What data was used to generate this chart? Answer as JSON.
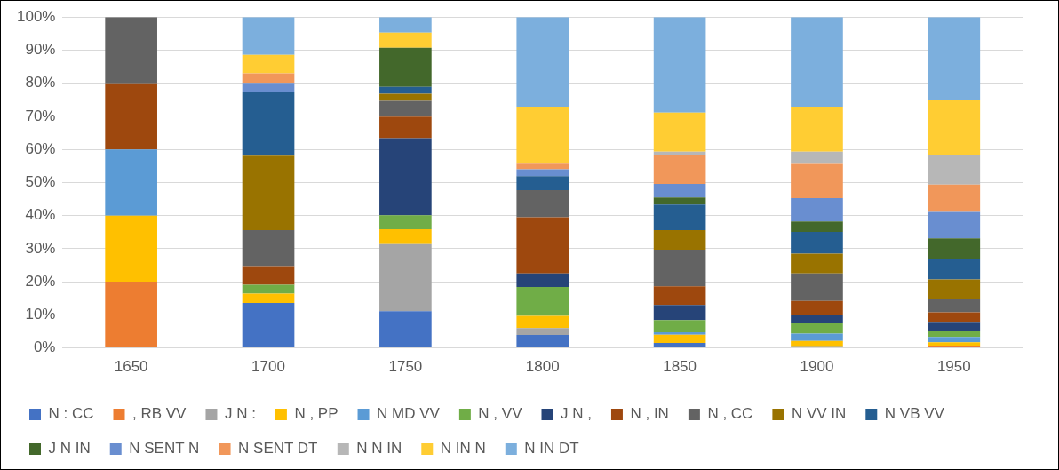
{
  "chart_data": {
    "type": "bar",
    "stacked": true,
    "grid": "y",
    "legend": "bottom",
    "categories": [
      "1650",
      "1700",
      "1750",
      "1800",
      "1850",
      "1900",
      "1950"
    ],
    "ylim": [
      0,
      100
    ],
    "yticks": [
      {
        "value": 0,
        "label": "0%"
      },
      {
        "value": 10,
        "label": "10%"
      },
      {
        "value": 20,
        "label": "20%"
      },
      {
        "value": 30,
        "label": "30%"
      },
      {
        "value": 40,
        "label": "40%"
      },
      {
        "value": 50,
        "label": "50%"
      },
      {
        "value": 60,
        "label": "60%"
      },
      {
        "value": 70,
        "label": "70%"
      },
      {
        "value": 80,
        "label": "80%"
      },
      {
        "value": 90,
        "label": "90%"
      },
      {
        "value": 100,
        "label": "100%"
      }
    ],
    "series": [
      {
        "name": "N : CC",
        "color": "#4472c4",
        "values": [
          0,
          13.6,
          11.1,
          3.9,
          1.5,
          0.5,
          0
        ]
      },
      {
        "name": ", RB VV",
        "color": "#ed7d31",
        "values": [
          20,
          0,
          0,
          0,
          0,
          0,
          0.7
        ]
      },
      {
        "name": "J N :",
        "color": "#a5a5a5",
        "values": [
          0,
          0,
          20.3,
          2.1,
          0,
          0,
          0
        ]
      },
      {
        "name": "N , PP",
        "color": "#ffc000",
        "values": [
          20,
          2.8,
          4.5,
          3.7,
          2.5,
          1.6,
          1.0
        ]
      },
      {
        "name": "N MD VV",
        "color": "#5b9bd5",
        "values": [
          20,
          0,
          0,
          0,
          0.7,
          2.2,
          1.6
        ]
      },
      {
        "name": "N , VV",
        "color": "#70ad47",
        "values": [
          0,
          2.7,
          4.2,
          8.7,
          3.7,
          3.2,
          1.9
        ]
      },
      {
        "name": "J N ,",
        "color": "#264478",
        "values": [
          0,
          0,
          23.3,
          4.1,
          4.6,
          2.4,
          2.7
        ]
      },
      {
        "name": "N , IN",
        "color": "#9e480e",
        "values": [
          20,
          5.6,
          6.5,
          17.0,
          5.6,
          4.3,
          2.9
        ]
      },
      {
        "name": "N , CC",
        "color": "#636363",
        "values": [
          20,
          10.9,
          4.8,
          8.2,
          11.1,
          8.3,
          4.1
        ]
      },
      {
        "name": "N VV IN",
        "color": "#997300",
        "values": [
          0,
          22.5,
          2.1,
          0,
          5.9,
          6.0,
          5.8
        ]
      },
      {
        "name": "N VB VV",
        "color": "#255e91",
        "values": [
          0,
          19.4,
          2.1,
          4.2,
          7.7,
          6.6,
          6.1
        ]
      },
      {
        "name": "J N IN",
        "color": "#43682b",
        "values": [
          0,
          0,
          11.8,
          0,
          2.2,
          3.1,
          6.3
        ]
      },
      {
        "name": "N SENT N",
        "color": "#698ed0",
        "values": [
          0,
          2.6,
          0,
          2.1,
          4.1,
          7.1,
          8.0
        ]
      },
      {
        "name": "N SENT DT",
        "color": "#f1975a",
        "values": [
          0,
          2.9,
          0,
          1.7,
          8.7,
          10.3,
          8.3
        ]
      },
      {
        "name": "N N IN",
        "color": "#b7b7b7",
        "values": [
          0,
          0,
          0,
          0,
          1.0,
          3.7,
          8.9
        ]
      },
      {
        "name": "N IN N",
        "color": "#ffcd33",
        "values": [
          0,
          5.6,
          4.6,
          17.2,
          11.8,
          13.6,
          16.5
        ]
      },
      {
        "name": "N IN DT",
        "color": "#7cafdd",
        "values": [
          0,
          11.4,
          4.7,
          27.1,
          28.9,
          27.1,
          25.2
        ]
      }
    ]
  }
}
